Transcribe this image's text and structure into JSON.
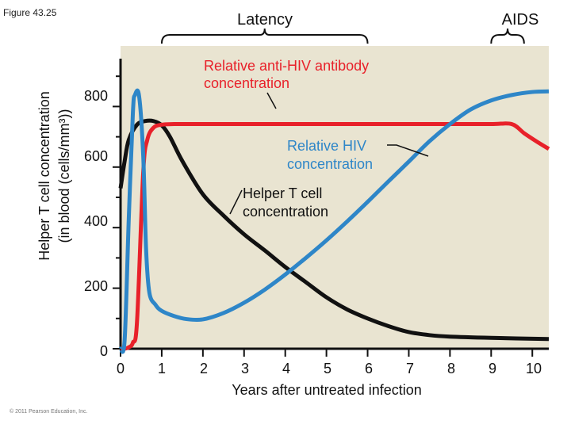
{
  "figure_label": "Figure 43.25",
  "copyright": "© 2011 Pearson Education, Inc.",
  "colors": {
    "plot_bg": "#e9e4d1",
    "blue": "#2e86c8",
    "red": "#e8212a",
    "black": "#111111"
  },
  "chart_data": {
    "type": "line",
    "title": "",
    "xlabel": "Years after untreated infection",
    "ylabel_line1": "Helper T cell concentration",
    "ylabel_line2": "in blood (cells/mm³)",
    "xlim": [
      0,
      10.4
    ],
    "ylim": [
      0,
      1000
    ],
    "x_ticks": [
      "0",
      "1",
      "2",
      "3",
      "4",
      "5",
      "6",
      "7",
      "8",
      "9",
      "10"
    ],
    "y_ticks": [
      "0",
      "200",
      "400",
      "600",
      "800"
    ],
    "phases": [
      {
        "name": "Latency",
        "x_start": 1.0,
        "x_end": 6.0
      },
      {
        "name": "AIDS",
        "x_start": 9.0,
        "x_end": 9.8
      }
    ],
    "annotations": [
      {
        "name": "antibody",
        "text_line1": "Relative anti-HIV antibody",
        "text_line2": "concentration"
      },
      {
        "name": "hiv",
        "text_line1": "Relative HIV",
        "text_line2": "concentration"
      },
      {
        "name": "tcell",
        "text_line1": "Helper T cell",
        "text_line2": "concentration"
      }
    ],
    "series": [
      {
        "name": "Helper T cell concentration",
        "color": "#111111",
        "x": [
          0,
          0.1,
          0.2,
          0.4,
          0.6,
          0.8,
          1.0,
          1.2,
          1.5,
          2.0,
          2.5,
          3.0,
          3.5,
          4.0,
          4.5,
          5.0,
          5.5,
          6.0,
          6.5,
          7.0,
          7.5,
          8.0,
          9.0,
          10.4
        ],
        "y": [
          530,
          620,
          690,
          740,
          752,
          752,
          738,
          700,
          620,
          510,
          440,
          378,
          325,
          270,
          220,
          170,
          130,
          100,
          75,
          55,
          45,
          40,
          36,
          32
        ]
      },
      {
        "name": "Relative anti-HIV antibody concentration",
        "color": "#e8212a",
        "x": [
          0,
          0.1,
          0.2,
          0.3,
          0.4,
          0.55,
          0.65,
          0.8,
          1.0,
          1.3,
          1.6,
          2.0,
          3.0,
          4.0,
          5.0,
          6.0,
          7.0,
          8.0,
          9.0,
          9.5,
          9.8,
          10.1,
          10.4
        ],
        "y": [
          0,
          0,
          5,
          20,
          90,
          580,
          690,
          730,
          740,
          742,
          742,
          742,
          742,
          742,
          742,
          742,
          742,
          742,
          742,
          742,
          712,
          685,
          660
        ]
      },
      {
        "name": "Relative HIV concentration",
        "color": "#2e86c8",
        "x": [
          0,
          0.1,
          0.2,
          0.3,
          0.35,
          0.45,
          0.55,
          0.62,
          0.7,
          0.85,
          1.0,
          1.3,
          1.6,
          2.0,
          2.5,
          3.0,
          3.5,
          4.0,
          4.5,
          5.0,
          5.5,
          6.0,
          6.5,
          7.0,
          7.5,
          8.0,
          8.5,
          9.0,
          9.5,
          10.0,
          10.4
        ],
        "y": [
          0,
          30,
          430,
          780,
          838,
          835,
          640,
          330,
          185,
          145,
          125,
          108,
          98,
          97,
          118,
          152,
          195,
          245,
          300,
          358,
          420,
          485,
          552,
          618,
          685,
          742,
          790,
          820,
          838,
          848,
          850
        ]
      }
    ]
  }
}
